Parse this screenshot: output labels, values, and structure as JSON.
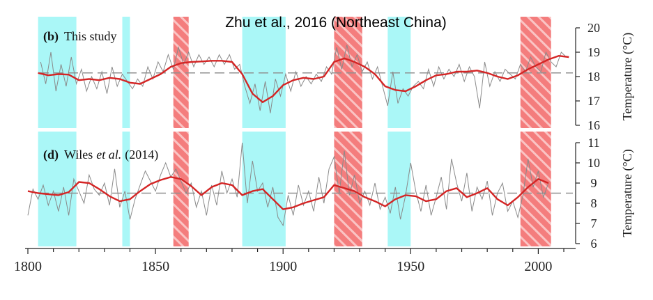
{
  "header": {
    "title": "Zhu et al., 2016   (Northeast China)"
  },
  "colors": {
    "cool": "#aaf7f7",
    "warm": "#f47d7d",
    "smooth": "#d42525",
    "raw": "#8a8a8a",
    "mean": "#8f8f8f",
    "axis": "#222222"
  },
  "chart_data": {
    "type": "line",
    "x_axis": {
      "range": [
        1800,
        2013
      ],
      "ticks": [
        1800,
        1850,
        1900,
        1950,
        2000
      ]
    },
    "cool_periods": [
      [
        1804,
        1819
      ],
      [
        1837,
        1840
      ],
      [
        1884,
        1901
      ],
      [
        1941,
        1950
      ]
    ],
    "warm_periods": [
      [
        1857,
        1863
      ],
      [
        1920,
        1931
      ],
      [
        1993,
        2005
      ]
    ],
    "panels": [
      {
        "id": "b",
        "label_parts": [
          "(b)",
          "This study",
          "",
          ""
        ],
        "ylabel": "Temperature (°C)",
        "yticks": [
          16,
          17,
          18,
          19,
          20
        ],
        "ylim": [
          16,
          20
        ],
        "mean": 18.15,
        "smooth": {
          "x": [
            1804,
            1808,
            1812,
            1816,
            1820,
            1824,
            1828,
            1832,
            1836,
            1840,
            1844,
            1848,
            1852,
            1856,
            1860,
            1864,
            1868,
            1872,
            1876,
            1880,
            1884,
            1888,
            1892,
            1896,
            1900,
            1904,
            1908,
            1912,
            1916,
            1920,
            1924,
            1928,
            1932,
            1936,
            1940,
            1944,
            1948,
            1952,
            1956,
            1960,
            1964,
            1968,
            1972,
            1976,
            1980,
            1984,
            1988,
            1992,
            1996,
            2000,
            2004,
            2008,
            2012
          ],
          "y": [
            18.15,
            18.05,
            18.1,
            18.08,
            17.85,
            17.9,
            17.85,
            17.95,
            17.9,
            17.75,
            17.7,
            17.9,
            18.1,
            18.4,
            18.55,
            18.6,
            18.62,
            18.65,
            18.65,
            18.6,
            18.1,
            17.3,
            16.95,
            17.2,
            17.65,
            17.85,
            17.95,
            17.9,
            18.0,
            18.6,
            18.75,
            18.6,
            18.4,
            18.1,
            17.6,
            17.45,
            17.4,
            17.6,
            17.85,
            18.05,
            18.1,
            18.2,
            18.2,
            18.25,
            18.15,
            18.0,
            17.9,
            18.05,
            18.3,
            18.5,
            18.7,
            18.85,
            18.8
          ]
        },
        "raw": {
          "x": [
            1805,
            1807,
            1809,
            1811,
            1813,
            1815,
            1817,
            1819,
            1821,
            1823,
            1825,
            1827,
            1829,
            1831,
            1833,
            1835,
            1837,
            1839,
            1841,
            1843,
            1845,
            1847,
            1849,
            1851,
            1853,
            1855,
            1857,
            1859,
            1861,
            1863,
            1865,
            1867,
            1869,
            1871,
            1873,
            1875,
            1877,
            1879,
            1881,
            1883,
            1885,
            1887,
            1889,
            1891,
            1893,
            1895,
            1897,
            1899,
            1901,
            1903,
            1905,
            1907,
            1909,
            1911,
            1913,
            1915,
            1917,
            1919,
            1921,
            1923,
            1925,
            1927,
            1929,
            1931,
            1933,
            1935,
            1937,
            1939,
            1941,
            1943,
            1945,
            1947,
            1949,
            1951,
            1953,
            1955,
            1957,
            1959,
            1961,
            1963,
            1965,
            1967,
            1969,
            1971,
            1973,
            1975,
            1977,
            1979,
            1981,
            1983,
            1985,
            1987,
            1989,
            1991,
            1993,
            1995,
            1997,
            1999,
            2001,
            2003,
            2005,
            2007,
            2009,
            2011
          ],
          "y": [
            18.6,
            17.7,
            19.0,
            17.4,
            18.5,
            17.6,
            18.8,
            17.7,
            18.3,
            17.4,
            18.0,
            17.5,
            18.2,
            17.3,
            18.4,
            17.6,
            18.1,
            17.8,
            17.5,
            17.9,
            17.6,
            18.4,
            17.9,
            18.6,
            18.2,
            18.9,
            18.3,
            19.2,
            18.5,
            19.0,
            18.4,
            18.9,
            18.5,
            18.8,
            18.4,
            18.9,
            18.5,
            18.9,
            18.3,
            18.5,
            17.6,
            16.9,
            17.7,
            16.6,
            17.8,
            16.5,
            17.9,
            17.2,
            18.1,
            17.4,
            18.2,
            17.6,
            18.0,
            17.7,
            18.1,
            17.8,
            18.4,
            18.1,
            19.2,
            18.3,
            19.3,
            18.4,
            18.9,
            18.2,
            18.6,
            17.9,
            18.4,
            17.6,
            16.8,
            18.2,
            16.9,
            17.5,
            17.2,
            17.6,
            17.8,
            17.5,
            18.3,
            17.6,
            18.4,
            17.9,
            18.3,
            18.0,
            18.5,
            17.8,
            18.4,
            18.0,
            16.7,
            18.6,
            17.6,
            18.2,
            17.8,
            18.3,
            18.1,
            17.9,
            18.5,
            18.2,
            18.8,
            18.4,
            18.2,
            19.0,
            18.6,
            18.4,
            19.0,
            18.8
          ]
        }
      },
      {
        "id": "d",
        "label_parts": [
          "(d)",
          "Wiles",
          "et al.",
          "(2014)"
        ],
        "ylabel": "Temperature (°C)",
        "yticks": [
          6,
          7,
          8,
          9,
          10,
          11
        ],
        "ylim": [
          6,
          11
        ],
        "mean": 8.5,
        "smooth": {
          "x": [
            1800,
            1804,
            1808,
            1812,
            1816,
            1820,
            1824,
            1828,
            1832,
            1836,
            1840,
            1844,
            1848,
            1852,
            1856,
            1860,
            1864,
            1868,
            1872,
            1876,
            1880,
            1884,
            1888,
            1892,
            1896,
            1900,
            1904,
            1908,
            1912,
            1916,
            1920,
            1924,
            1928,
            1932,
            1936,
            1940,
            1944,
            1948,
            1952,
            1956,
            1960,
            1964,
            1968,
            1972,
            1976,
            1980,
            1984,
            1988,
            1992,
            1996,
            2000,
            2004
          ],
          "y": [
            8.6,
            8.5,
            8.45,
            8.4,
            8.55,
            9.05,
            9.0,
            8.7,
            8.35,
            8.1,
            8.2,
            8.6,
            8.95,
            9.15,
            9.3,
            9.2,
            8.85,
            8.4,
            8.8,
            9.0,
            8.9,
            8.4,
            8.6,
            8.7,
            8.2,
            7.7,
            7.8,
            8.0,
            8.15,
            8.3,
            8.9,
            8.75,
            8.6,
            8.3,
            8.1,
            7.85,
            8.2,
            8.4,
            8.35,
            8.1,
            8.2,
            8.6,
            8.75,
            8.3,
            8.5,
            8.75,
            8.2,
            7.9,
            8.3,
            8.8,
            9.2,
            9.0
          ]
        },
        "raw": {
          "x": [
            1800,
            1802,
            1804,
            1806,
            1808,
            1810,
            1812,
            1814,
            1816,
            1818,
            1820,
            1822,
            1824,
            1826,
            1828,
            1830,
            1832,
            1834,
            1836,
            1838,
            1840,
            1842,
            1844,
            1846,
            1848,
            1850,
            1852,
            1854,
            1856,
            1858,
            1860,
            1862,
            1864,
            1866,
            1868,
            1870,
            1872,
            1874,
            1876,
            1878,
            1880,
            1882,
            1884,
            1886,
            1888,
            1890,
            1892,
            1894,
            1896,
            1898,
            1900,
            1902,
            1904,
            1906,
            1908,
            1910,
            1912,
            1914,
            1916,
            1918,
            1920,
            1922,
            1924,
            1926,
            1928,
            1930,
            1932,
            1934,
            1936,
            1938,
            1940,
            1942,
            1944,
            1946,
            1948,
            1950,
            1952,
            1954,
            1956,
            1958,
            1960,
            1962,
            1964,
            1966,
            1968,
            1970,
            1972,
            1974,
            1976,
            1978,
            1980,
            1982,
            1984,
            1986,
            1988,
            1990,
            1992,
            1994,
            1996,
            1998,
            2000,
            2002,
            2004
          ],
          "y": [
            7.4,
            8.7,
            8.2,
            8.9,
            7.9,
            8.6,
            7.6,
            8.8,
            7.4,
            9.2,
            8.6,
            8.0,
            9.4,
            8.7,
            8.4,
            9.0,
            7.9,
            9.7,
            7.8,
            8.6,
            7.2,
            8.2,
            8.9,
            9.6,
            9.1,
            8.6,
            9.4,
            10.0,
            9.3,
            9.7,
            9.1,
            8.5,
            9.0,
            7.8,
            8.6,
            7.4,
            8.9,
            7.9,
            9.6,
            8.5,
            9.2,
            8.3,
            11.0,
            8.0,
            10.1,
            8.6,
            9.0,
            7.8,
            8.8,
            7.3,
            6.9,
            8.4,
            7.4,
            8.9,
            7.9,
            8.6,
            7.6,
            9.3,
            8.0,
            9.7,
            10.3,
            8.5,
            10.6,
            8.4,
            9.4,
            8.0,
            8.6,
            7.9,
            9.0,
            7.7,
            8.3,
            7.5,
            8.8,
            7.2,
            8.4,
            10.0,
            8.6,
            7.6,
            8.9,
            7.4,
            8.3,
            9.3,
            7.7,
            10.2,
            9.0,
            8.1,
            9.5,
            7.6,
            8.8,
            8.2,
            9.1,
            7.4,
            8.5,
            9.0,
            7.6,
            8.1,
            7.3,
            8.4,
            10.2,
            8.8,
            9.6,
            8.3,
            9.0
          ]
        }
      }
    ]
  }
}
